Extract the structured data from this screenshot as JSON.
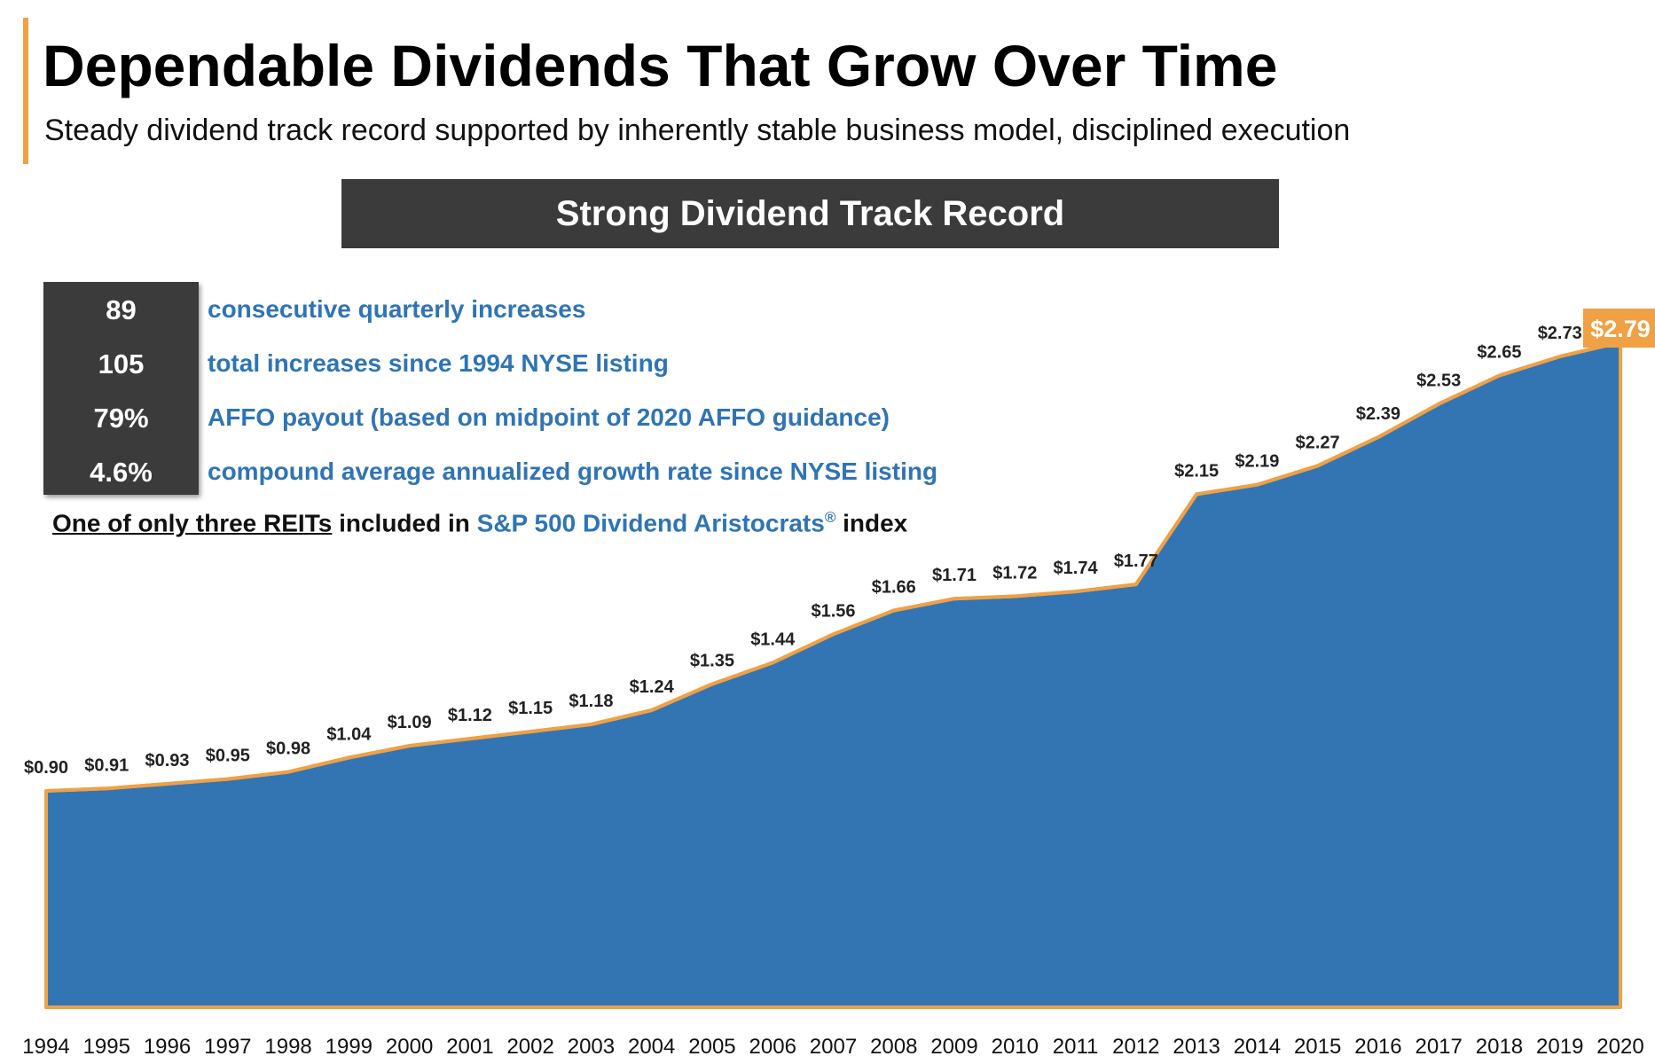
{
  "header": {
    "title": "Dependable Dividends That Grow Over Time",
    "subtitle": "Steady dividend track record supported by inherently stable business model, disciplined execution"
  },
  "banner": {
    "label": "Strong Dividend Track Record"
  },
  "stats": [
    {
      "value": "89",
      "label": "consecutive quarterly increases"
    },
    {
      "value": "105",
      "label": "total increases since 1994 NYSE listing"
    },
    {
      "value": "79%",
      "label": "AFFO payout (based on midpoint of 2020 AFFO guidance)"
    },
    {
      "value": "4.6%",
      "label": "compound average annualized growth rate since NYSE listing"
    }
  ],
  "aristocrats": {
    "underlined": "One of only three REITs",
    "middle": " included in ",
    "index_name": "S&P 500 Dividend Aristocrats",
    "registered": "®",
    "tail": " index"
  },
  "colors": {
    "area": "#3375b2",
    "line": "#f0a045",
    "dark": "#3b3b3b",
    "accent_text": "#2f74b5"
  },
  "chart_data": {
    "type": "area",
    "title": "Strong Dividend Track Record",
    "xlabel": "",
    "ylabel": "",
    "ylim": [
      0,
      3
    ],
    "grid": false,
    "x": [
      "1994",
      "1995",
      "1996",
      "1997",
      "1998",
      "1999",
      "2000",
      "2001",
      "2002",
      "2003",
      "2004",
      "2005",
      "2006",
      "2007",
      "2008",
      "2009",
      "2010",
      "2011",
      "2012",
      "2013",
      "2014",
      "2015",
      "2016",
      "2017",
      "2018",
      "2019",
      "2020"
    ],
    "values": [
      0.9,
      0.91,
      0.93,
      0.95,
      0.98,
      1.04,
      1.09,
      1.12,
      1.15,
      1.18,
      1.24,
      1.35,
      1.44,
      1.56,
      1.66,
      1.71,
      1.72,
      1.74,
      1.77,
      2.15,
      2.19,
      2.27,
      2.39,
      2.53,
      2.65,
      2.73,
      2.79
    ],
    "data_labels": [
      "$0.90",
      "$0.91",
      "$0.93",
      "$0.95",
      "$0.98",
      "$1.04",
      "$1.09",
      "$1.12",
      "$1.15",
      "$1.18",
      "$1.24",
      "$1.35",
      "$1.44",
      "$1.56",
      "$1.66",
      "$1.71",
      "$1.72",
      "$1.74",
      "$1.77",
      "$2.15",
      "$2.19",
      "$2.27",
      "$2.39",
      "$2.53",
      "$2.65",
      "$2.73",
      "$2.79"
    ],
    "highlight_last": true
  }
}
